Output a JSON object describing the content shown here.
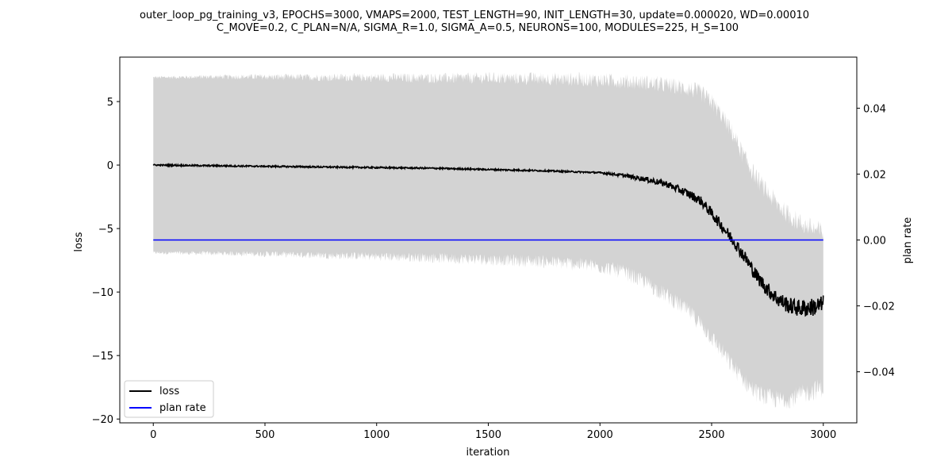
{
  "chart_data": {
    "type": "line",
    "title_lines": [
      "outer_loop_pg_training_v3, EPOCHS=3000, VMAPS=2000, TEST_LENGTH=90, INIT_LENGTH=30, update=0.000020, WD=0.00010",
      "C_MOVE=0.2, C_PLAN=N/A, SIGMA_R=1.0, SIGMA_A=0.5, NEURONS=100, MODULES=225, H_S=100"
    ],
    "xlabel": "iteration",
    "ylabel": "loss",
    "y2label": "plan rate",
    "xlim": [
      -150,
      3150
    ],
    "ylim": [
      -20.3,
      8.5
    ],
    "y2lim": [
      -0.0555,
      0.0555
    ],
    "xticks": [
      0,
      500,
      1000,
      1500,
      2000,
      2500,
      3000
    ],
    "yticks": [
      5,
      0,
      -5,
      -10,
      -15,
      -20
    ],
    "y2ticks": [
      0.04,
      0.02,
      0.0,
      -0.02,
      -0.04
    ],
    "y2tick_labels": [
      "0.04",
      "0.02",
      "0.00",
      "−0.02",
      "−0.04"
    ],
    "yticks_labels": [
      "5",
      "0",
      "−5",
      "−10",
      "−15",
      "−20"
    ],
    "legend_position": "lower-left",
    "series": [
      {
        "name": "loss",
        "axis": "left",
        "color": "#000000",
        "x": [
          0,
          250,
          500,
          750,
          1000,
          1250,
          1500,
          1750,
          2000,
          2100,
          2200,
          2300,
          2400,
          2450,
          2500,
          2550,
          2600,
          2650,
          2700,
          2750,
          2800,
          2850,
          2900,
          2950,
          3000
        ],
        "y": [
          0.0,
          -0.05,
          -0.1,
          -0.15,
          -0.2,
          -0.25,
          -0.35,
          -0.45,
          -0.6,
          -0.8,
          -1.1,
          -1.5,
          -2.3,
          -2.8,
          -3.8,
          -4.9,
          -6.0,
          -7.3,
          -8.7,
          -9.8,
          -10.6,
          -11.1,
          -11.3,
          -11.2,
          -11.0
        ]
      },
      {
        "name": "plan rate",
        "axis": "right",
        "color": "#0000ff",
        "x": [
          0,
          3000
        ],
        "y": [
          0.0,
          0.0
        ]
      }
    ],
    "band": {
      "axis": "left",
      "color": "#d3d3d3",
      "x": [
        0,
        250,
        500,
        750,
        1000,
        1250,
        1500,
        1750,
        1900,
        2000,
        2100,
        2200,
        2300,
        2400,
        2450,
        2500,
        2550,
        2600,
        2650,
        2700,
        2750,
        2800,
        2850,
        2900,
        2950,
        3000
      ],
      "upper": [
        6.9,
        6.95,
        6.95,
        6.9,
        6.9,
        6.85,
        6.85,
        6.8,
        6.75,
        6.7,
        6.6,
        6.5,
        6.3,
        6.0,
        5.7,
        5.0,
        3.8,
        2.3,
        0.5,
        -1.0,
        -2.2,
        -3.2,
        -4.0,
        -4.6,
        -5.0,
        -5.3
      ],
      "lower": [
        -6.9,
        -6.95,
        -7.0,
        -7.1,
        -7.2,
        -7.3,
        -7.45,
        -7.6,
        -7.8,
        -8.0,
        -8.4,
        -9.2,
        -10.3,
        -11.6,
        -12.5,
        -13.6,
        -14.8,
        -16.0,
        -17.1,
        -17.9,
        -18.3,
        -18.5,
        -18.4,
        -18.1,
        -17.8,
        -17.5
      ]
    }
  }
}
